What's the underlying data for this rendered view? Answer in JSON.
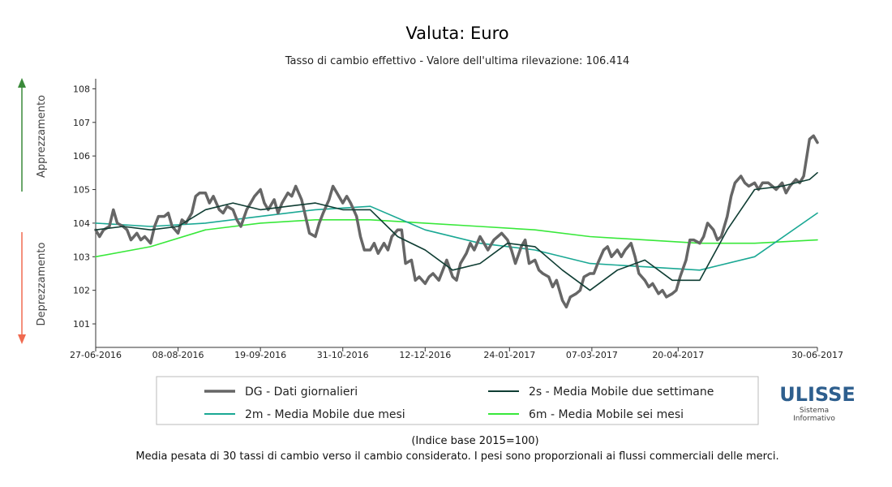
{
  "title": "Valuta: Euro",
  "subtitle": "Tasso di cambio effettivo - Valore dell'ultima rilevazione: 106.414",
  "side_labels": {
    "top": "Apprezzamento",
    "bottom": "Deprezzamento"
  },
  "colors": {
    "up_arrow": "#3a8a3a",
    "down_arrow": "#f06a50"
  },
  "footer": {
    "base": "(Indice base 2015=100)",
    "note": "Media pesata di 30 tassi di cambio verso il cambio considerato. I pesi sono proporzionali ai flussi commerciali delle merci."
  },
  "logo": {
    "name": "ULISSE",
    "line1": "Sistema",
    "line2": "Informativo"
  },
  "chart_data": {
    "type": "line",
    "x_range": [
      "2016-06-27",
      "2017-06-30"
    ],
    "ylim": [
      100.3,
      108.3
    ],
    "y_ticks": [
      101,
      102,
      103,
      104,
      105,
      106,
      107,
      108
    ],
    "x_ticks": [
      "27-06-2016",
      "08-08-2016",
      "19-09-2016",
      "31-10-2016",
      "12-12-2016",
      "24-01-2017",
      "07-03-2017",
      "20-04-2017",
      "30-06-2017"
    ],
    "legend_position": "bottom",
    "series": [
      {
        "name": "DG - Dati giornalieri",
        "color": "#666666",
        "width": 3.5,
        "points": [
          [
            "2016-06-27",
            103.8
          ],
          [
            "2016-06-29",
            103.6
          ],
          [
            "2016-07-01",
            103.8
          ],
          [
            "2016-07-04",
            103.9
          ],
          [
            "2016-07-06",
            104.4
          ],
          [
            "2016-07-08",
            104.0
          ],
          [
            "2016-07-11",
            103.9
          ],
          [
            "2016-07-13",
            103.8
          ],
          [
            "2016-07-15",
            103.5
          ],
          [
            "2016-07-18",
            103.7
          ],
          [
            "2016-07-20",
            103.5
          ],
          [
            "2016-07-22",
            103.6
          ],
          [
            "2016-07-25",
            103.4
          ],
          [
            "2016-07-27",
            103.9
          ],
          [
            "2016-07-29",
            104.2
          ],
          [
            "2016-08-01",
            104.2
          ],
          [
            "2016-08-03",
            104.3
          ],
          [
            "2016-08-05",
            103.9
          ],
          [
            "2016-08-08",
            103.7
          ],
          [
            "2016-08-10",
            104.1
          ],
          [
            "2016-08-12",
            104.0
          ],
          [
            "2016-08-15",
            104.3
          ],
          [
            "2016-08-17",
            104.8
          ],
          [
            "2016-08-19",
            104.9
          ],
          [
            "2016-08-22",
            104.9
          ],
          [
            "2016-08-24",
            104.6
          ],
          [
            "2016-08-26",
            104.8
          ],
          [
            "2016-08-29",
            104.4
          ],
          [
            "2016-08-31",
            104.3
          ],
          [
            "2016-09-02",
            104.5
          ],
          [
            "2016-09-05",
            104.4
          ],
          [
            "2016-09-07",
            104.1
          ],
          [
            "2016-09-09",
            103.9
          ],
          [
            "2016-09-12",
            104.4
          ],
          [
            "2016-09-14",
            104.6
          ],
          [
            "2016-09-16",
            104.8
          ],
          [
            "2016-09-19",
            105.0
          ],
          [
            "2016-09-21",
            104.6
          ],
          [
            "2016-09-23",
            104.4
          ],
          [
            "2016-09-26",
            104.7
          ],
          [
            "2016-09-28",
            104.3
          ],
          [
            "2016-09-30",
            104.6
          ],
          [
            "2016-10-03",
            104.9
          ],
          [
            "2016-10-05",
            104.8
          ],
          [
            "2016-10-07",
            105.1
          ],
          [
            "2016-10-10",
            104.7
          ],
          [
            "2016-10-12",
            104.2
          ],
          [
            "2016-10-14",
            103.7
          ],
          [
            "2016-10-17",
            103.6
          ],
          [
            "2016-10-19",
            104.0
          ],
          [
            "2016-10-21",
            104.3
          ],
          [
            "2016-10-24",
            104.7
          ],
          [
            "2016-10-26",
            105.1
          ],
          [
            "2016-10-28",
            104.9
          ],
          [
            "2016-10-31",
            104.6
          ],
          [
            "2016-11-02",
            104.8
          ],
          [
            "2016-11-04",
            104.6
          ],
          [
            "2016-11-07",
            104.2
          ],
          [
            "2016-11-09",
            103.6
          ],
          [
            "2016-11-11",
            103.2
          ],
          [
            "2016-11-14",
            103.2
          ],
          [
            "2016-11-16",
            103.4
          ],
          [
            "2016-11-18",
            103.1
          ],
          [
            "2016-11-21",
            103.4
          ],
          [
            "2016-11-23",
            103.2
          ],
          [
            "2016-11-25",
            103.6
          ],
          [
            "2016-11-28",
            103.8
          ],
          [
            "2016-11-30",
            103.8
          ],
          [
            "2016-12-02",
            102.8
          ],
          [
            "2016-12-05",
            102.9
          ],
          [
            "2016-12-07",
            102.3
          ],
          [
            "2016-12-09",
            102.4
          ],
          [
            "2016-12-12",
            102.2
          ],
          [
            "2016-12-14",
            102.4
          ],
          [
            "2016-12-16",
            102.5
          ],
          [
            "2016-12-19",
            102.3
          ],
          [
            "2016-12-21",
            102.6
          ],
          [
            "2016-12-23",
            102.9
          ],
          [
            "2016-12-26",
            102.4
          ],
          [
            "2016-12-28",
            102.3
          ],
          [
            "2016-12-30",
            102.8
          ],
          [
            "2017-01-02",
            103.1
          ],
          [
            "2017-01-04",
            103.4
          ],
          [
            "2017-01-06",
            103.2
          ],
          [
            "2017-01-09",
            103.6
          ],
          [
            "2017-01-11",
            103.4
          ],
          [
            "2017-01-13",
            103.2
          ],
          [
            "2017-01-16",
            103.5
          ],
          [
            "2017-01-18",
            103.6
          ],
          [
            "2017-01-20",
            103.7
          ],
          [
            "2017-01-23",
            103.5
          ],
          [
            "2017-01-25",
            103.2
          ],
          [
            "2017-01-27",
            102.8
          ],
          [
            "2017-01-30",
            103.3
          ],
          [
            "2017-02-01",
            103.5
          ],
          [
            "2017-02-03",
            102.8
          ],
          [
            "2017-02-06",
            102.9
          ],
          [
            "2017-02-08",
            102.6
          ],
          [
            "2017-02-10",
            102.5
          ],
          [
            "2017-02-13",
            102.4
          ],
          [
            "2017-02-15",
            102.1
          ],
          [
            "2017-02-17",
            102.3
          ],
          [
            "2017-02-20",
            101.7
          ],
          [
            "2017-02-22",
            101.5
          ],
          [
            "2017-02-24",
            101.8
          ],
          [
            "2017-02-27",
            101.9
          ],
          [
            "2017-03-01",
            102.0
          ],
          [
            "2017-03-03",
            102.4
          ],
          [
            "2017-03-06",
            102.5
          ],
          [
            "2017-03-08",
            102.5
          ],
          [
            "2017-03-10",
            102.8
          ],
          [
            "2017-03-13",
            103.2
          ],
          [
            "2017-03-15",
            103.3
          ],
          [
            "2017-03-17",
            103.0
          ],
          [
            "2017-03-20",
            103.2
          ],
          [
            "2017-03-22",
            103.0
          ],
          [
            "2017-03-24",
            103.2
          ],
          [
            "2017-03-27",
            103.4
          ],
          [
            "2017-03-29",
            103.0
          ],
          [
            "2017-03-31",
            102.5
          ],
          [
            "2017-04-03",
            102.3
          ],
          [
            "2017-04-05",
            102.1
          ],
          [
            "2017-04-07",
            102.2
          ],
          [
            "2017-04-10",
            101.9
          ],
          [
            "2017-04-12",
            102.0
          ],
          [
            "2017-04-14",
            101.8
          ],
          [
            "2017-04-17",
            101.9
          ],
          [
            "2017-04-19",
            102.0
          ],
          [
            "2017-04-21",
            102.4
          ],
          [
            "2017-04-24",
            102.9
          ],
          [
            "2017-04-26",
            103.5
          ],
          [
            "2017-04-28",
            103.5
          ],
          [
            "2017-05-01",
            103.4
          ],
          [
            "2017-05-03",
            103.6
          ],
          [
            "2017-05-05",
            104.0
          ],
          [
            "2017-05-08",
            103.8
          ],
          [
            "2017-05-10",
            103.5
          ],
          [
            "2017-05-12",
            103.6
          ],
          [
            "2017-05-15",
            104.2
          ],
          [
            "2017-05-17",
            104.8
          ],
          [
            "2017-05-19",
            105.2
          ],
          [
            "2017-05-22",
            105.4
          ],
          [
            "2017-05-24",
            105.2
          ],
          [
            "2017-05-26",
            105.1
          ],
          [
            "2017-05-29",
            105.2
          ],
          [
            "2017-05-31",
            105.0
          ],
          [
            "2017-06-02",
            105.2
          ],
          [
            "2017-06-05",
            105.2
          ],
          [
            "2017-06-07",
            105.1
          ],
          [
            "2017-06-09",
            105.0
          ],
          [
            "2017-06-12",
            105.2
          ],
          [
            "2017-06-14",
            104.9
          ],
          [
            "2017-06-16",
            105.1
          ],
          [
            "2017-06-19",
            105.3
          ],
          [
            "2017-06-21",
            105.2
          ],
          [
            "2017-06-23",
            105.4
          ],
          [
            "2017-06-26",
            106.5
          ],
          [
            "2017-06-28",
            106.6
          ],
          [
            "2017-06-30",
            106.4
          ]
        ]
      },
      {
        "name": "2s - Media Mobile due settimane",
        "color": "#0f3d33",
        "width": 1.6,
        "points": [
          [
            "2016-06-27",
            103.8
          ],
          [
            "2016-07-11",
            103.9
          ],
          [
            "2016-07-25",
            103.8
          ],
          [
            "2016-08-08",
            103.9
          ],
          [
            "2016-08-22",
            104.4
          ],
          [
            "2016-09-05",
            104.6
          ],
          [
            "2016-09-19",
            104.4
          ],
          [
            "2016-10-03",
            104.5
          ],
          [
            "2016-10-17",
            104.6
          ],
          [
            "2016-10-31",
            104.4
          ],
          [
            "2016-11-14",
            104.4
          ],
          [
            "2016-11-28",
            103.6
          ],
          [
            "2016-12-12",
            103.2
          ],
          [
            "2016-12-26",
            102.6
          ],
          [
            "2017-01-09",
            102.8
          ],
          [
            "2017-01-23",
            103.4
          ],
          [
            "2017-02-06",
            103.3
          ],
          [
            "2017-02-20",
            102.6
          ],
          [
            "2017-03-06",
            102.0
          ],
          [
            "2017-03-20",
            102.6
          ],
          [
            "2017-04-03",
            102.9
          ],
          [
            "2017-04-17",
            102.3
          ],
          [
            "2017-05-01",
            102.3
          ],
          [
            "2017-05-15",
            103.8
          ],
          [
            "2017-05-29",
            105.0
          ],
          [
            "2017-06-12",
            105.1
          ],
          [
            "2017-06-26",
            105.3
          ],
          [
            "2017-06-30",
            105.5
          ]
        ]
      },
      {
        "name": "2m - Media Mobile due mesi",
        "color": "#1aa894",
        "width": 1.6,
        "points": [
          [
            "2016-06-27",
            104.0
          ],
          [
            "2016-07-25",
            103.9
          ],
          [
            "2016-08-22",
            104.0
          ],
          [
            "2016-09-19",
            104.2
          ],
          [
            "2016-10-17",
            104.4
          ],
          [
            "2016-11-14",
            104.5
          ],
          [
            "2016-12-12",
            103.8
          ],
          [
            "2017-01-09",
            103.4
          ],
          [
            "2017-02-06",
            103.2
          ],
          [
            "2017-03-06",
            102.8
          ],
          [
            "2017-04-03",
            102.7
          ],
          [
            "2017-05-01",
            102.6
          ],
          [
            "2017-05-29",
            103.0
          ],
          [
            "2017-06-30",
            104.3
          ]
        ]
      },
      {
        "name": "6m - Media Mobile sei mesi",
        "color": "#38e83a",
        "width": 1.6,
        "points": [
          [
            "2016-06-27",
            103.0
          ],
          [
            "2016-07-25",
            103.3
          ],
          [
            "2016-08-22",
            103.8
          ],
          [
            "2016-09-19",
            104.0
          ],
          [
            "2016-10-17",
            104.1
          ],
          [
            "2016-11-14",
            104.1
          ],
          [
            "2016-12-12",
            104.0
          ],
          [
            "2017-01-09",
            103.9
          ],
          [
            "2017-02-06",
            103.8
          ],
          [
            "2017-03-06",
            103.6
          ],
          [
            "2017-04-03",
            103.5
          ],
          [
            "2017-05-01",
            103.4
          ],
          [
            "2017-05-29",
            103.4
          ],
          [
            "2017-06-30",
            103.5
          ]
        ]
      }
    ]
  }
}
